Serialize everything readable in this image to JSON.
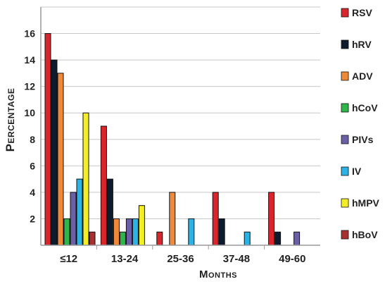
{
  "chart_data": {
    "type": "bar",
    "xlabel": "Months",
    "ylabel": "Percentage",
    "categories": [
      "≤12",
      "13-24",
      "25-36",
      "37-48",
      "49-60"
    ],
    "ylim": [
      0,
      18
    ],
    "yticks": [
      2,
      4,
      6,
      8,
      10,
      12,
      14,
      16
    ],
    "grid": true,
    "legend_position": "right",
    "series": [
      {
        "name": "RSV",
        "color": "#d9262c",
        "values": [
          16,
          9,
          1,
          4,
          4
        ]
      },
      {
        "name": "hRV",
        "color": "#0e1a2e",
        "values": [
          14,
          5,
          0,
          2,
          1
        ]
      },
      {
        "name": "ADV",
        "color": "#ef8a3a",
        "values": [
          13,
          2,
          4,
          0,
          0
        ]
      },
      {
        "name": "hCoV",
        "color": "#2fb64a",
        "values": [
          2,
          1,
          0,
          0,
          0
        ]
      },
      {
        "name": "PIVs",
        "color": "#6b5fa6",
        "values": [
          4,
          2,
          0,
          0,
          1
        ]
      },
      {
        "name": "IV",
        "color": "#2bb3e6",
        "values": [
          5,
          2,
          2,
          1,
          0
        ]
      },
      {
        "name": "hMPV",
        "color": "#f3ee26",
        "values": [
          10,
          3,
          0,
          0,
          0
        ]
      },
      {
        "name": "hBoV",
        "color": "#a8302e",
        "values": [
          1,
          0,
          0,
          0,
          0
        ]
      }
    ]
  }
}
